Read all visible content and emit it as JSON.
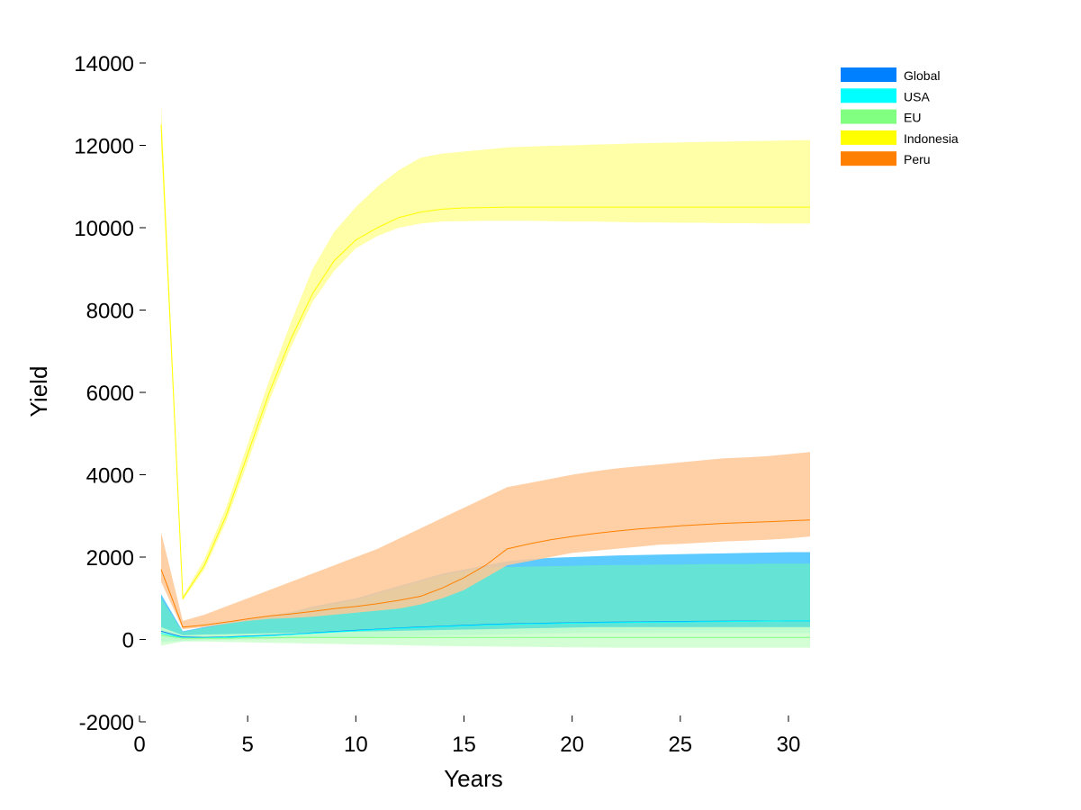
{
  "chart_data": {
    "type": "area",
    "title": "",
    "xlabel": "Years",
    "ylabel": "Yield",
    "xlim": [
      0,
      31
    ],
    "ylim": [
      -2000,
      14000
    ],
    "x_ticks": [
      0,
      5,
      10,
      15,
      20,
      25,
      30
    ],
    "y_ticks": [
      -2000,
      0,
      2000,
      4000,
      6000,
      8000,
      10000,
      12000,
      14000
    ],
    "grid": false,
    "legend_position": "top-right",
    "x": [
      1,
      2,
      3,
      4,
      5,
      6,
      7,
      8,
      9,
      10,
      11,
      12,
      13,
      14,
      15,
      16,
      17,
      18,
      19,
      20,
      21,
      22,
      23,
      24,
      25,
      26,
      27,
      28,
      29,
      30,
      31
    ],
    "series": [
      {
        "name": "Global",
        "color": "#0080ff",
        "band_color": "#40c0ff",
        "mean": [
          200,
          60,
          50,
          60,
          80,
          100,
          130,
          160,
          190,
          220,
          250,
          280,
          300,
          320,
          340,
          360,
          375,
          385,
          395,
          405,
          415,
          420,
          425,
          430,
          435,
          440,
          443,
          446,
          448,
          450,
          450
        ],
        "lower": [
          -50,
          -20,
          0,
          10,
          20,
          30,
          40,
          50,
          60,
          70,
          80,
          90,
          100,
          110,
          120,
          130,
          140,
          150,
          160,
          170,
          180,
          190,
          200,
          210,
          220,
          230,
          235,
          240,
          245,
          250,
          250
        ],
        "upper": [
          1100,
          200,
          300,
          400,
          500,
          580,
          660,
          800,
          900,
          1000,
          1150,
          1300,
          1450,
          1600,
          1700,
          1800,
          1900,
          1950,
          1980,
          2000,
          2020,
          2040,
          2050,
          2060,
          2070,
          2080,
          2090,
          2100,
          2110,
          2120,
          2120
        ]
      },
      {
        "name": "USA",
        "color": "#00ffff",
        "band_color": "#66e8cc",
        "mean": [
          150,
          40,
          40,
          50,
          70,
          90,
          120,
          150,
          180,
          210,
          240,
          270,
          290,
          310,
          330,
          350,
          365,
          375,
          385,
          395,
          405,
          410,
          415,
          420,
          425,
          430,
          435,
          440,
          445,
          450,
          450
        ],
        "lower": [
          -60,
          -40,
          -20,
          -10,
          0,
          10,
          20,
          30,
          40,
          50,
          60,
          70,
          80,
          90,
          100,
          110,
          120,
          130,
          140,
          150,
          150,
          150,
          150,
          150,
          150,
          150,
          150,
          150,
          150,
          150,
          150
        ],
        "upper": [
          1000,
          180,
          280,
          380,
          470,
          560,
          640,
          760,
          850,
          950,
          1100,
          1250,
          1400,
          1550,
          1650,
          1750,
          1760,
          1770,
          1780,
          1790,
          1800,
          1810,
          1810,
          1820,
          1820,
          1830,
          1830,
          1830,
          1840,
          1840,
          1840
        ]
      },
      {
        "name": "EU",
        "color": "#80ff80",
        "band_color": "#ccffcc",
        "mean": [
          100,
          30,
          30,
          30,
          40,
          40,
          50,
          50,
          50,
          50,
          50,
          50,
          50,
          50,
          50,
          50,
          50,
          50,
          50,
          50,
          50,
          50,
          50,
          50,
          50,
          50,
          50,
          50,
          50,
          50,
          50
        ],
        "lower": [
          -150,
          -50,
          -50,
          -60,
          -70,
          -80,
          -90,
          -100,
          -110,
          -120,
          -130,
          -140,
          -150,
          -160,
          -165,
          -170,
          -175,
          -180,
          -185,
          -190,
          -195,
          -200,
          -200,
          -200,
          -200,
          -200,
          -200,
          -200,
          -200,
          -200,
          -200
        ],
        "upper": [
          300,
          100,
          120,
          130,
          140,
          150,
          160,
          170,
          180,
          190,
          200,
          210,
          220,
          230,
          240,
          250,
          260,
          270,
          280,
          290,
          300,
          300,
          300,
          300,
          300,
          300,
          300,
          300,
          300,
          300,
          300
        ]
      },
      {
        "name": "Indonesia",
        "color": "#ffff00",
        "band_color": "#ffff99",
        "mean": [
          12500,
          1000,
          1800,
          3000,
          4500,
          6000,
          7300,
          8400,
          9200,
          9700,
          10000,
          10250,
          10380,
          10450,
          10480,
          10490,
          10500,
          10500,
          10500,
          10500,
          10500,
          10500,
          10500,
          10500,
          10500,
          10500,
          10500,
          10500,
          10500,
          10500,
          10500
        ],
        "lower": [
          12000,
          950,
          1700,
          2850,
          4300,
          5800,
          7100,
          8200,
          8950,
          9500,
          9800,
          10000,
          10100,
          10150,
          10160,
          10170,
          10170,
          10170,
          10160,
          10150,
          10150,
          10140,
          10130,
          10130,
          10120,
          10120,
          10110,
          10110,
          10100,
          10100,
          10100
        ],
        "upper": [
          13000,
          1050,
          1950,
          3200,
          4750,
          6300,
          7700,
          9000,
          9900,
          10500,
          11000,
          11400,
          11700,
          11800,
          11850,
          11900,
          11950,
          11970,
          11990,
          12000,
          12020,
          12030,
          12050,
          12060,
          12070,
          12080,
          12090,
          12100,
          12110,
          12120,
          12130
        ]
      },
      {
        "name": "Peru",
        "color": "#ff8000",
        "band_color": "#ffc896",
        "mean": [
          1700,
          300,
          350,
          420,
          500,
          570,
          620,
          680,
          750,
          800,
          870,
          950,
          1050,
          1250,
          1500,
          1800,
          2200,
          2320,
          2420,
          2500,
          2570,
          2630,
          2680,
          2720,
          2760,
          2790,
          2820,
          2840,
          2860,
          2880,
          2900
        ],
        "lower": [
          1400,
          250,
          300,
          380,
          450,
          500,
          520,
          550,
          600,
          650,
          700,
          750,
          850,
          1000,
          1200,
          1500,
          1800,
          1900,
          2000,
          2100,
          2150,
          2200,
          2250,
          2300,
          2320,
          2350,
          2380,
          2400,
          2420,
          2450,
          2500
        ],
        "upper": [
          2600,
          450,
          600,
          800,
          1000,
          1200,
          1400,
          1600,
          1800,
          2000,
          2200,
          2450,
          2700,
          2950,
          3200,
          3450,
          3700,
          3800,
          3900,
          4000,
          4080,
          4150,
          4200,
          4250,
          4300,
          4350,
          4400,
          4420,
          4450,
          4500,
          4550
        ]
      }
    ]
  }
}
